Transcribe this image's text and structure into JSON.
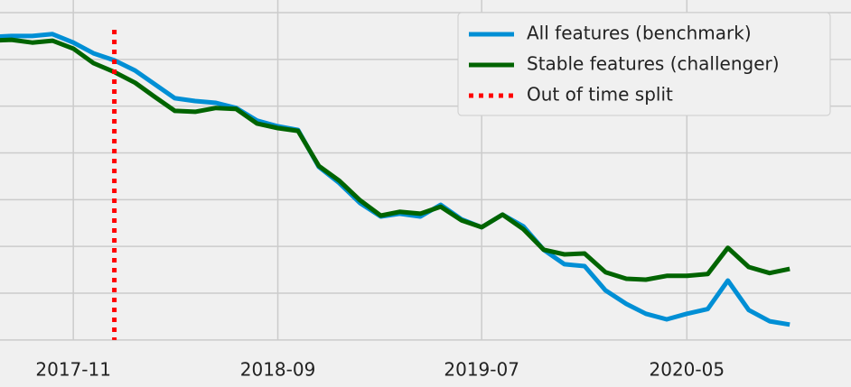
{
  "chart_data": {
    "type": "line",
    "x": [
      "2017-07",
      "2017-08",
      "2017-09",
      "2017-10",
      "2017-11",
      "2017-12",
      "2018-01",
      "2018-02",
      "2018-03",
      "2018-04",
      "2018-05",
      "2018-06",
      "2018-07",
      "2018-08",
      "2018-09",
      "2018-10",
      "2018-11",
      "2018-12",
      "2019-01",
      "2019-02",
      "2019-03",
      "2019-04",
      "2019-05",
      "2019-06",
      "2019-07",
      "2019-08",
      "2019-09",
      "2019-10",
      "2019-11",
      "2019-12",
      "2020-01",
      "2020-02",
      "2020-03",
      "2020-04",
      "2020-05",
      "2020-06",
      "2020-07",
      "2020-08",
      "2020-09",
      "2020-10"
    ],
    "series": [
      {
        "name": "All features (benchmark)",
        "color": "#008fd5",
        "values": [
          6.48,
          6.5,
          6.5,
          6.54,
          6.36,
          6.13,
          5.98,
          5.76,
          5.48,
          5.17,
          5.11,
          5.07,
          4.96,
          4.69,
          4.57,
          4.49,
          3.7,
          3.36,
          2.93,
          2.64,
          2.7,
          2.64,
          2.89,
          2.58,
          2.41,
          2.68,
          2.43,
          1.93,
          1.62,
          1.58,
          1.06,
          0.77,
          0.56,
          0.44,
          0.56,
          0.66,
          1.27,
          0.64,
          0.4,
          0.33
        ]
      },
      {
        "name": "Stable features (challenger)",
        "color": "#006400",
        "values": [
          6.4,
          6.42,
          6.36,
          6.4,
          6.23,
          5.92,
          5.73,
          5.5,
          5.21,
          4.9,
          4.88,
          4.96,
          4.94,
          4.63,
          4.53,
          4.47,
          3.72,
          3.41,
          2.99,
          2.66,
          2.74,
          2.7,
          2.85,
          2.56,
          2.41,
          2.68,
          2.37,
          1.93,
          1.83,
          1.85,
          1.45,
          1.31,
          1.29,
          1.37,
          1.37,
          1.41,
          1.97,
          1.56,
          1.43,
          1.52
        ]
      }
    ],
    "split": {
      "name": "Out of time split",
      "color": "#ff0000",
      "x": "2018-01"
    },
    "xlim": [
      "2017-07-15",
      "2020-12-31"
    ],
    "xticks": [
      "2017-11",
      "2018-09",
      "2019-07",
      "2020-05"
    ],
    "ylim": [
      -0.35,
      7.27
    ],
    "yticks": [
      0,
      1,
      2,
      3,
      4,
      5,
      6,
      7
    ],
    "grid": true,
    "legend": "upper right"
  }
}
